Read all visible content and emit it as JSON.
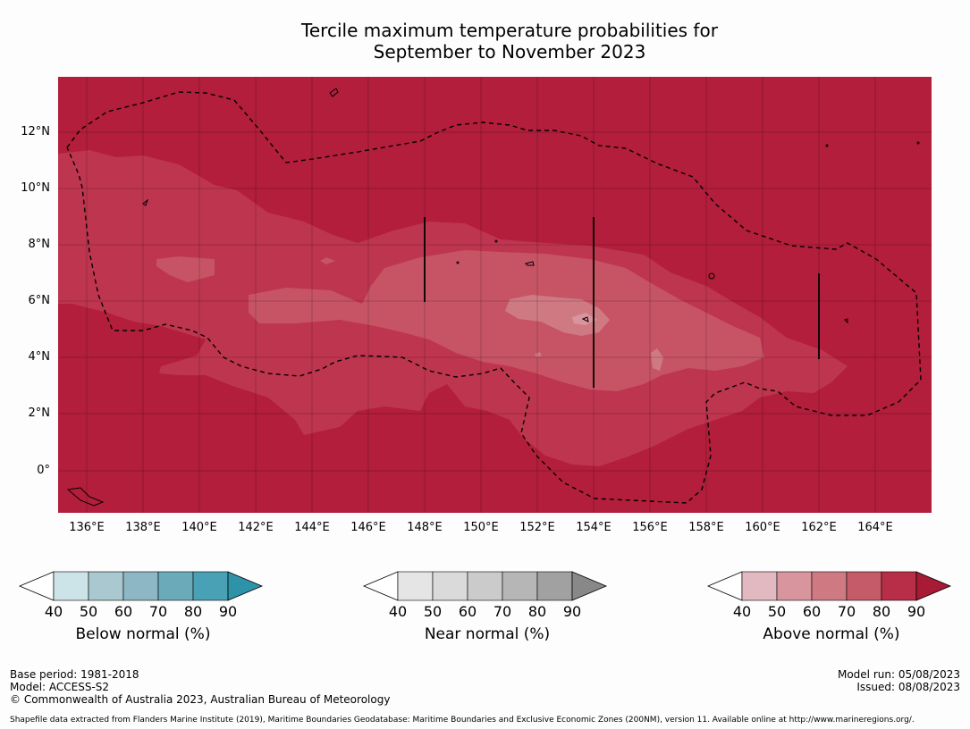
{
  "title": {
    "line1": "Tercile maximum temperature probabilities for",
    "line2": "September to November 2023"
  },
  "map": {
    "lon_range": [
      134.9,
      165.9
    ],
    "lat_range": [
      -1.4,
      14.0
    ],
    "lat_labels": [
      "12°N",
      "10°N",
      "8°N",
      "6°N",
      "4°N",
      "2°N",
      "0°"
    ],
    "lon_labels": [
      "136°E",
      "138°E",
      "140°E",
      "142°E",
      "144°E",
      "146°E",
      "148°E",
      "150°E",
      "152°E",
      "154°E",
      "156°E",
      "158°E",
      "160°E",
      "162°E",
      "164°E"
    ],
    "shading_colors": {
      "above_90": "#b21e3c",
      "above_80": "#be3550",
      "above_70": "#c65464",
      "ocean_base": "#b21e3c"
    }
  },
  "colorbars": [
    {
      "label": "Below normal (%)",
      "ticks": [
        "40",
        "50",
        "60",
        "70",
        "80",
        "90"
      ],
      "colors": [
        "#cce3e8",
        "#a9c8cf",
        "#8db7c4",
        "#6aaab9",
        "#48a1b4",
        "#2e93a8"
      ]
    },
    {
      "label": "Near normal (%)",
      "ticks": [
        "40",
        "50",
        "60",
        "70",
        "80",
        "90"
      ],
      "colors": [
        "#e5e5e5",
        "#dadada",
        "#cbcbcb",
        "#b6b6b6",
        "#a1a1a1",
        "#888888"
      ]
    },
    {
      "label": "Above normal (%)",
      "ticks": [
        "40",
        "50",
        "60",
        "70",
        "80",
        "90"
      ],
      "colors": [
        "#e2b8c1",
        "#d8959d",
        "#cf7a82",
        "#c55b69",
        "#b82e48",
        "#a81a36"
      ]
    }
  ],
  "footer": {
    "base_period": "Base period: 1981-2018",
    "model": "Model: ACCESS-S2",
    "copyright": "© Commonwealth of Australia 2023, Australian Bureau of Meteorology",
    "model_run": "Model run: 05/08/2023",
    "issued": "Issued: 08/08/2023",
    "shapefile": "Shapefile data extracted from Flanders Marine Institute (2019), Maritime Boundaries Geodatabase: Maritime Boundaries and Exclusive Economic Zones (200NM), version 11. Available online at http://www.marineregions.org/."
  }
}
